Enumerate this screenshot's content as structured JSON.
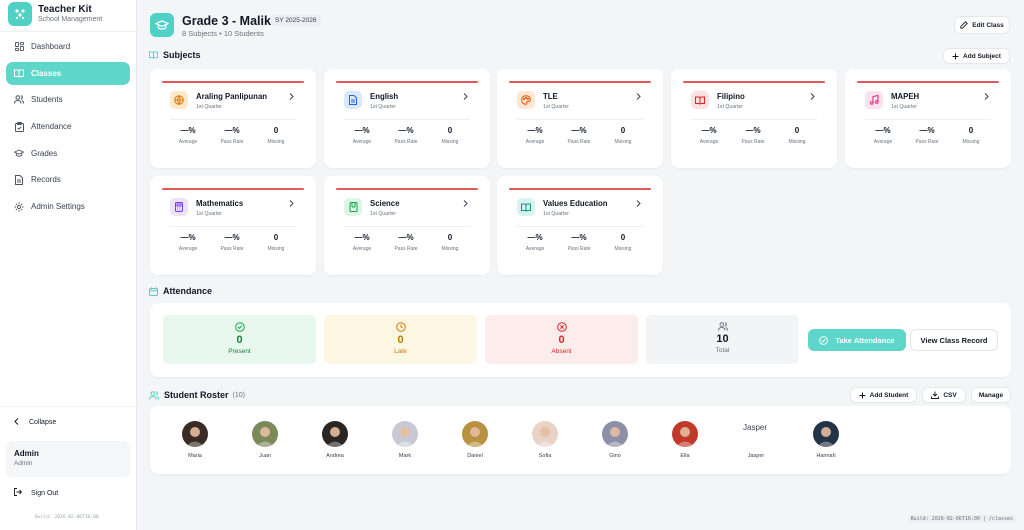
{
  "brand": {
    "title": "Teacher Kit",
    "subtitle": "School Management"
  },
  "nav": [
    {
      "label": "Dashboard",
      "icon": "grid-icon"
    },
    {
      "label": "Classes",
      "icon": "book-icon",
      "active": true
    },
    {
      "label": "Students",
      "icon": "users-icon"
    },
    {
      "label": "Attendance",
      "icon": "clipboard-check-icon"
    },
    {
      "label": "Grades",
      "icon": "graduation-cap-icon"
    },
    {
      "label": "Records",
      "icon": "file-icon"
    },
    {
      "label": "Admin Settings",
      "icon": "gear-icon"
    }
  ],
  "sidebar_footer": {
    "collapse_label": "Collapse",
    "user_name": "Admin",
    "user_role": "Admin",
    "signout_label": "Sign Out",
    "build_left": "Build: 2026-02-06T16:00",
    "build_right": "Build: 2026-02-06T16:00 | /classes"
  },
  "header": {
    "title": "Grade 3 - Maliksi",
    "school_year": "SY 2025-2026",
    "subtitle": "8 Subjects • 10 Students",
    "edit_label": "Edit Class"
  },
  "subjects": {
    "title": "Subjects",
    "add_label": "Add Subject",
    "stat_labels": {
      "average": "Average",
      "pass_rate": "Pass Rate",
      "missing": "Missing"
    },
    "items": [
      {
        "name": "Araling Panlipunan",
        "quarter": "1st Quarter",
        "icon": "globe-icon",
        "color": "#fde9c8",
        "icon_color": "#d97706",
        "average": "—%",
        "pass_rate": "—%",
        "missing": "0"
      },
      {
        "name": "English",
        "quarter": "1st Quarter",
        "icon": "document-icon",
        "color": "#dbe8fb",
        "icon_color": "#2563eb",
        "average": "—%",
        "pass_rate": "—%",
        "missing": "0"
      },
      {
        "name": "TLE",
        "quarter": "1st Quarter",
        "icon": "palette-icon",
        "color": "#fde7d3",
        "icon_color": "#ea580c",
        "average": "—%",
        "pass_rate": "—%",
        "missing": "0"
      },
      {
        "name": "Filipino",
        "quarter": "1st Quarter",
        "icon": "open-book-icon",
        "color": "#fde0e0",
        "icon_color": "#dc2626",
        "average": "—%",
        "pass_rate": "—%",
        "missing": "0"
      },
      {
        "name": "MAPEH",
        "quarter": "1st Quarter",
        "icon": "music-icon",
        "color": "#fbe0ee",
        "icon_color": "#db2777",
        "average": "—%",
        "pass_rate": "—%",
        "missing": "0"
      },
      {
        "name": "Mathematics",
        "quarter": "1st Quarter",
        "icon": "calculator-icon",
        "color": "#ece3fb",
        "icon_color": "#7c3aed",
        "average": "—%",
        "pass_rate": "—%",
        "missing": "0"
      },
      {
        "name": "Science",
        "quarter": "1st Quarter",
        "icon": "flask-icon",
        "color": "#ddf5e4",
        "icon_color": "#16a34a",
        "average": "—%",
        "pass_rate": "—%",
        "missing": "0"
      },
      {
        "name": "Values Education",
        "quarter": "1st Quarter",
        "icon": "open-book-icon",
        "color": "#d8f3ef",
        "icon_color": "#0d9488",
        "average": "—%",
        "pass_rate": "—%",
        "missing": "0"
      }
    ]
  },
  "attendance": {
    "title": "Attendance",
    "present": {
      "value": "0",
      "label": "Present",
      "bg": "#e9f8ee",
      "color": "#15803d"
    },
    "late": {
      "value": "0",
      "label": "Late",
      "bg": "#fdf6e3",
      "color": "#c47a06"
    },
    "absent": {
      "value": "0",
      "label": "Absent",
      "bg": "#fdecec",
      "color": "#dc2626"
    },
    "total": {
      "value": "10",
      "label": "Total",
      "bg": "#f3f4f6",
      "color": "#111827"
    },
    "take_label": "Take Attendance",
    "record_label": "View Class Record"
  },
  "roster": {
    "title": "Student Roster",
    "count": "(10)",
    "add_label": "Add Student",
    "csv_label": "CSV",
    "manage_label": "Manage",
    "students": [
      {
        "name": "Maria",
        "tone": "#3a2b26"
      },
      {
        "name": "Juan",
        "tone": "#7a8a5a"
      },
      {
        "name": "Andrea",
        "tone": "#2b2523"
      },
      {
        "name": "Mark",
        "tone": "#c9c9d6"
      },
      {
        "name": "Daniel",
        "tone": "#b89240"
      },
      {
        "name": "Sofia",
        "tone": "#e8d3c6"
      },
      {
        "name": "Gino",
        "tone": "#8c8fa8"
      },
      {
        "name": "Ella",
        "tone": "#c0392b"
      },
      {
        "name": "Jasper",
        "tone": "",
        "broken_alt": "Jasper"
      },
      {
        "name": "Hannah",
        "tone": "#243447"
      }
    ]
  }
}
